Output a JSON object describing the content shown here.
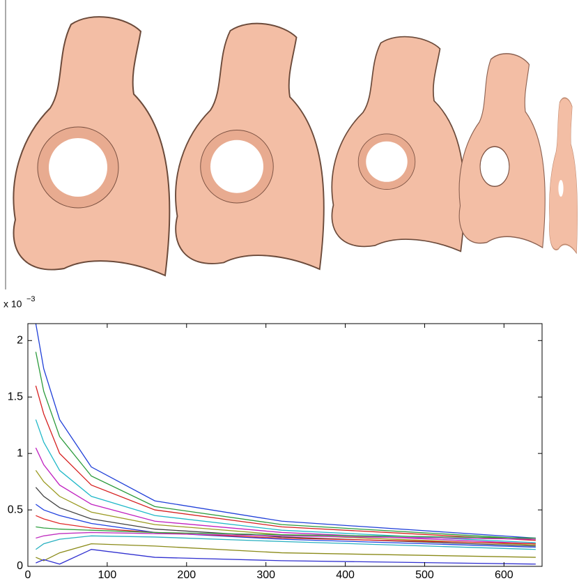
{
  "chart_data": {
    "type": "line",
    "axis_multiplier": {
      "base": "x 10",
      "exponent": "−3"
    },
    "x": [
      10,
      20,
      40,
      80,
      160,
      320,
      640
    ],
    "xlim": [
      0,
      648
    ],
    "xticks": [
      0,
      100,
      200,
      300,
      400,
      500,
      600
    ],
    "ylim": [
      0,
      2.15
    ],
    "yticks": [
      0,
      0.5,
      1,
      1.5,
      2
    ],
    "series": [
      {
        "color": "#1f3fd8",
        "values": [
          2.15,
          1.75,
          1.3,
          0.88,
          0.58,
          0.4,
          0.25
        ]
      },
      {
        "color": "#2a9a3a",
        "values": [
          1.9,
          1.55,
          1.15,
          0.8,
          0.53,
          0.37,
          0.24
        ]
      },
      {
        "color": "#d62020",
        "values": [
          1.6,
          1.35,
          1.0,
          0.72,
          0.5,
          0.35,
          0.23
        ]
      },
      {
        "color": "#20b8c8",
        "values": [
          1.3,
          1.1,
          0.85,
          0.62,
          0.45,
          0.32,
          0.21
        ]
      },
      {
        "color": "#c020c0",
        "values": [
          1.05,
          0.9,
          0.72,
          0.55,
          0.4,
          0.3,
          0.2
        ]
      },
      {
        "color": "#9a9a20",
        "values": [
          0.85,
          0.75,
          0.62,
          0.48,
          0.37,
          0.28,
          0.19
        ]
      },
      {
        "color": "#404040",
        "values": [
          0.7,
          0.62,
          0.52,
          0.42,
          0.33,
          0.26,
          0.18
        ]
      },
      {
        "color": "#2040e0",
        "values": [
          0.55,
          0.5,
          0.45,
          0.38,
          0.3,
          0.24,
          0.17
        ]
      },
      {
        "color": "#e02828",
        "values": [
          0.45,
          0.42,
          0.38,
          0.34,
          0.3,
          0.25,
          0.2
        ]
      },
      {
        "color": "#30a040",
        "values": [
          0.35,
          0.34,
          0.33,
          0.32,
          0.3,
          0.28,
          0.25
        ]
      },
      {
        "color": "#c030c0",
        "values": [
          0.25,
          0.27,
          0.29,
          0.3,
          0.29,
          0.27,
          0.24
        ]
      },
      {
        "color": "#28b0c0",
        "values": [
          0.15,
          0.2,
          0.24,
          0.27,
          0.26,
          0.22,
          0.15
        ]
      },
      {
        "color": "#8a8a18",
        "values": [
          0.08,
          0.05,
          0.12,
          0.2,
          0.18,
          0.12,
          0.08
        ]
      },
      {
        "color": "#3030d0",
        "values": [
          0.03,
          0.06,
          0.02,
          0.15,
          0.08,
          0.05,
          0.02
        ]
      }
    ]
  }
}
